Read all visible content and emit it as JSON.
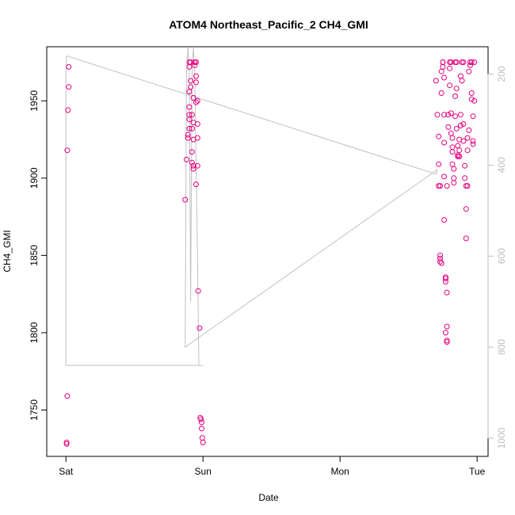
{
  "chart_data": {
    "type": "scatter",
    "title": "ATOM4 Northeast_Pacific_2 CH4_GMI",
    "xlabel": "Date",
    "ylabel": "CH4_GMI",
    "x_ticks": [
      {
        "label": "Sat",
        "day": 0
      },
      {
        "label": "Sun",
        "day": 1
      },
      {
        "label": "Mon",
        "day": 2
      },
      {
        "label": "Tue",
        "day": 3
      }
    ],
    "xlim_days": [
      -0.14,
      3.08
    ],
    "ylim": [
      1720,
      1985
    ],
    "y_ticks": [
      1750,
      1800,
      1850,
      1900,
      1950
    ],
    "right_axis": {
      "label": "",
      "ylim": [
        1040,
        140
      ],
      "ticks": [
        200,
        400,
        600,
        800,
        1000
      ],
      "color": "#bdbdbd"
    },
    "point_color": "#e4007f",
    "line_color": "#c0c0c0",
    "series": [
      {
        "name": "",
        "points": [
          [
            0.02,
            1972
          ],
          [
            0.02,
            1959
          ],
          [
            0.015,
            1944
          ],
          [
            0.01,
            1918
          ],
          [
            0.01,
            1759
          ],
          [
            0.005,
            1729
          ],
          [
            0.005,
            1728
          ],
          [
            0.87,
            1886
          ],
          [
            0.88,
            1912
          ],
          [
            0.89,
            1926
          ],
          [
            0.89,
            1928
          ],
          [
            0.9,
            1932
          ],
          [
            0.9,
            1938
          ],
          [
            0.9,
            1941
          ],
          [
            0.9,
            1946
          ],
          [
            0.9,
            1956
          ],
          [
            0.91,
            1959
          ],
          [
            0.91,
            1963
          ],
          [
            0.9,
            1972
          ],
          [
            0.9,
            1975
          ],
          [
            0.91,
            1975
          ],
          [
            0.92,
            1941
          ],
          [
            0.92,
            1932
          ],
          [
            0.92,
            1917
          ],
          [
            0.92,
            1910
          ],
          [
            0.93,
            1908
          ],
          [
            0.93,
            1906
          ],
          [
            0.93,
            1925
          ],
          [
            0.93,
            1936
          ],
          [
            0.93,
            1952
          ],
          [
            0.94,
            1975
          ],
          [
            0.94,
            1973
          ],
          [
            0.94,
            1975
          ],
          [
            0.95,
            1975
          ],
          [
            0.95,
            1966
          ],
          [
            0.95,
            1962
          ],
          [
            0.96,
            1950
          ],
          [
            0.96,
            1935
          ],
          [
            0.96,
            1926
          ],
          [
            0.96,
            1908
          ],
          [
            0.95,
            1896
          ],
          [
            0.95,
            1949
          ],
          [
            0.965,
            1827
          ],
          [
            0.975,
            1803
          ],
          [
            0.98,
            1745
          ],
          [
            0.985,
            1744
          ],
          [
            0.99,
            1742
          ],
          [
            0.99,
            1738
          ],
          [
            0.995,
            1732
          ],
          [
            1.0,
            1729
          ],
          [
            2.7,
            1963
          ],
          [
            2.71,
            1941
          ],
          [
            2.72,
            1927
          ],
          [
            2.72,
            1909
          ],
          [
            2.72,
            1895
          ],
          [
            2.73,
            1895
          ],
          [
            2.73,
            1846
          ],
          [
            2.73,
            1848
          ],
          [
            2.73,
            1850
          ],
          [
            2.74,
            1845
          ],
          [
            2.74,
            1955
          ],
          [
            2.74,
            1969
          ],
          [
            2.75,
            1975
          ],
          [
            2.75,
            1975
          ],
          [
            2.75,
            1972
          ],
          [
            2.76,
            1965
          ],
          [
            2.76,
            1941
          ],
          [
            2.76,
            1923
          ],
          [
            2.76,
            1901
          ],
          [
            2.76,
            1873
          ],
          [
            2.77,
            1836
          ],
          [
            2.77,
            1835
          ],
          [
            2.77,
            1833
          ],
          [
            2.77,
            1800
          ],
          [
            2.78,
            1795
          ],
          [
            2.78,
            1794
          ],
          [
            2.78,
            1804
          ],
          [
            2.78,
            1826
          ],
          [
            2.78,
            1895
          ],
          [
            2.79,
            1933
          ],
          [
            2.79,
            1941
          ],
          [
            2.8,
            1960
          ],
          [
            2.8,
            1971
          ],
          [
            2.8,
            1975
          ],
          [
            2.81,
            1975
          ],
          [
            2.81,
            1942
          ],
          [
            2.81,
            1929
          ],
          [
            2.82,
            1926
          ],
          [
            2.82,
            1920
          ],
          [
            2.82,
            1917
          ],
          [
            2.82,
            1909
          ],
          [
            2.83,
            1906
          ],
          [
            2.83,
            1900
          ],
          [
            2.83,
            1897
          ],
          [
            2.84,
            1940
          ],
          [
            2.84,
            1953
          ],
          [
            2.84,
            1975
          ],
          [
            2.85,
            1975
          ],
          [
            2.85,
            1958
          ],
          [
            2.85,
            1932
          ],
          [
            2.86,
            1921
          ],
          [
            2.86,
            1915
          ],
          [
            2.86,
            1914
          ],
          [
            2.87,
            1914
          ],
          [
            2.87,
            1918
          ],
          [
            2.87,
            1925
          ],
          [
            2.88,
            1934
          ],
          [
            2.88,
            1941
          ],
          [
            2.88,
            1966
          ],
          [
            2.89,
            1963
          ],
          [
            2.89,
            1975
          ],
          [
            2.9,
            1975
          ],
          [
            2.9,
            1935
          ],
          [
            2.9,
            1924
          ],
          [
            2.91,
            1908
          ],
          [
            2.91,
            1900
          ],
          [
            2.92,
            1895
          ],
          [
            2.92,
            1880
          ],
          [
            2.92,
            1861
          ],
          [
            2.93,
            1895
          ],
          [
            2.93,
            1918
          ],
          [
            2.93,
            1926
          ],
          [
            2.94,
            1931
          ],
          [
            2.94,
            1969
          ],
          [
            2.95,
            1973
          ],
          [
            2.95,
            1975
          ],
          [
            2.96,
            1975
          ],
          [
            2.96,
            1955
          ],
          [
            2.96,
            1951
          ],
          [
            2.97,
            1940
          ],
          [
            2.97,
            1924
          ],
          [
            2.97,
            1922
          ],
          [
            2.98,
            1975
          ],
          [
            2.98,
            1950
          ]
        ]
      }
    ],
    "gray_line_pressure": [
      [
        0.0,
        840
      ],
      [
        0.0,
        200
      ],
      [
        0.005,
        160
      ],
      [
        2.7,
        420
      ],
      [
        2.71,
        410
      ],
      [
        0.87,
        800
      ],
      [
        0.875,
        480
      ],
      [
        0.88,
        200
      ],
      [
        0.89,
        140
      ],
      [
        0.9,
        200
      ],
      [
        0.91,
        700
      ],
      [
        0.92,
        200
      ],
      [
        0.93,
        140
      ],
      [
        0.94,
        200
      ],
      [
        0.95,
        400
      ],
      [
        0.96,
        600
      ],
      [
        0.97,
        840
      ],
      [
        1.0,
        840
      ],
      [
        0.0,
        840
      ]
    ]
  }
}
